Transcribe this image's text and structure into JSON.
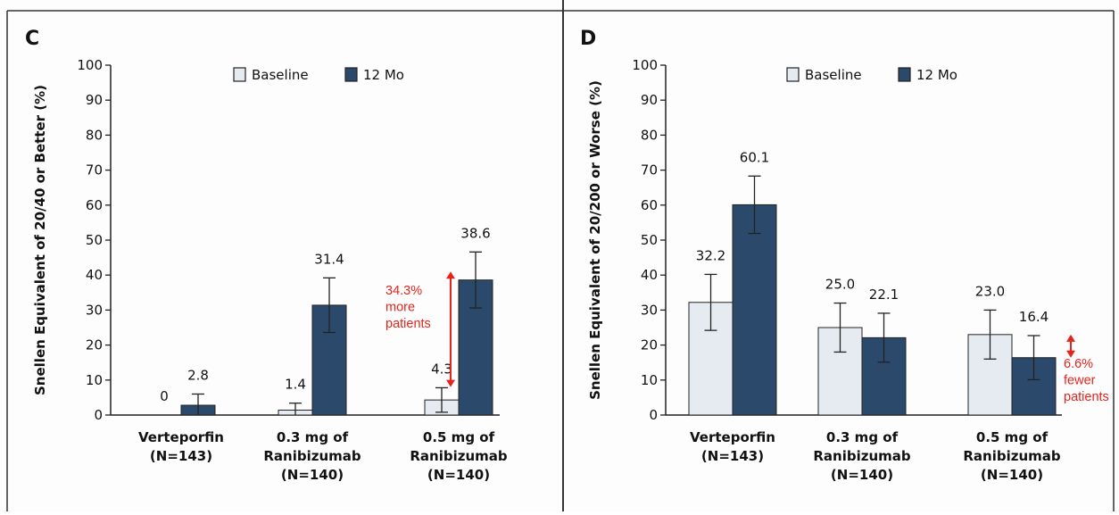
{
  "colors": {
    "baseline_fill": "#e6ebf1",
    "twelve_mo_fill": "#2b4a6b",
    "annotation": "#e8231b",
    "axis": "#222222"
  },
  "chart_data": [
    {
      "panel_label": "C",
      "type": "bar",
      "ylabel": "Snellen Equivalent of 20/40 or Better (%)",
      "ylim": [
        0,
        100
      ],
      "yticks": [
        0,
        10,
        20,
        30,
        40,
        50,
        60,
        70,
        80,
        90,
        100
      ],
      "legend_placement": "top",
      "groups": [
        {
          "lines": [
            "Verteporfin",
            "(N=143)"
          ]
        },
        {
          "lines": [
            "0.3 mg of",
            "Ranibizumab",
            "(N=140)"
          ]
        },
        {
          "lines": [
            "0.5 mg of",
            "Ranibizumab",
            "(N=140)"
          ]
        }
      ],
      "series": [
        {
          "name": "Baseline",
          "values": [
            0,
            1.4,
            4.3
          ],
          "labels": [
            "0",
            "1.4",
            "4.3"
          ],
          "error": [
            0,
            2,
            3.5
          ]
        },
        {
          "name": "12 Mo",
          "values": [
            2.8,
            31.4,
            38.6
          ],
          "labels": [
            "2.8",
            "31.4",
            "38.6"
          ],
          "error": [
            3.2,
            7.8,
            8
          ]
        }
      ],
      "annotation": {
        "lines": [
          "34.3%",
          "more",
          "patients"
        ],
        "from": 8,
        "to": 41
      }
    },
    {
      "panel_label": "D",
      "type": "bar",
      "ylabel": "Snellen Equivalent of 20/200 or Worse (%)",
      "ylim": [
        0,
        100
      ],
      "yticks": [
        0,
        10,
        20,
        30,
        40,
        50,
        60,
        70,
        80,
        90,
        100
      ],
      "legend_placement": "top",
      "groups": [
        {
          "lines": [
            "Verteporfin",
            "(N=143)"
          ]
        },
        {
          "lines": [
            "0.3 mg of",
            "Ranibizumab",
            "(N=140)"
          ]
        },
        {
          "lines": [
            "0.5 mg of",
            "Ranibizumab",
            "(N=140)"
          ]
        }
      ],
      "series": [
        {
          "name": "Baseline",
          "values": [
            32.2,
            25.0,
            23.0
          ],
          "labels": [
            "32.2",
            "25.0",
            "23.0"
          ],
          "error": [
            8,
            7,
            7
          ]
        },
        {
          "name": "12 Mo",
          "values": [
            60.1,
            22.1,
            16.4
          ],
          "labels": [
            "60.1",
            "22.1",
            "16.4"
          ],
          "error": [
            8.2,
            7,
            6.3
          ]
        }
      ],
      "annotation": {
        "lines": [
          "6.6%",
          "fewer",
          "patients"
        ],
        "from": 16.4,
        "to": 23.0
      }
    }
  ]
}
